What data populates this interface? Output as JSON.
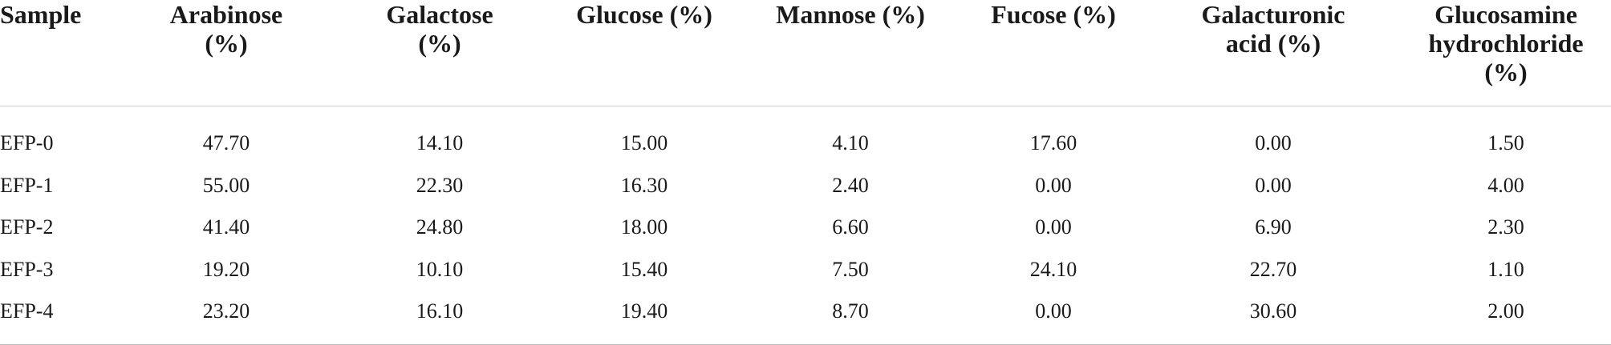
{
  "table": {
    "header": [
      "Sample",
      "Arabinose (%)",
      "Galactose (%)",
      "Glucose (%)",
      "Mannose (%)",
      "Fucose (%)",
      "Galacturonic acid (%)",
      "Glucosamine hydrochloride (%)"
    ],
    "rows": [
      [
        "EFP-0",
        "47.70",
        "14.10",
        "15.00",
        "4.10",
        "17.60",
        "0.00",
        "1.50"
      ],
      [
        "EFP-1",
        "55.00",
        "22.30",
        "16.30",
        "2.40",
        "0.00",
        "0.00",
        "4.00"
      ],
      [
        "EFP-2",
        "41.40",
        "24.80",
        "18.00",
        "6.60",
        "0.00",
        "6.90",
        "2.30"
      ],
      [
        "EFP-3",
        "19.20",
        "10.10",
        "15.40",
        "7.50",
        "24.10",
        "22.70",
        "1.10"
      ],
      [
        "EFP-4",
        "23.20",
        "16.10",
        "19.40",
        "8.70",
        "0.00",
        "30.60",
        "2.00"
      ]
    ]
  }
}
